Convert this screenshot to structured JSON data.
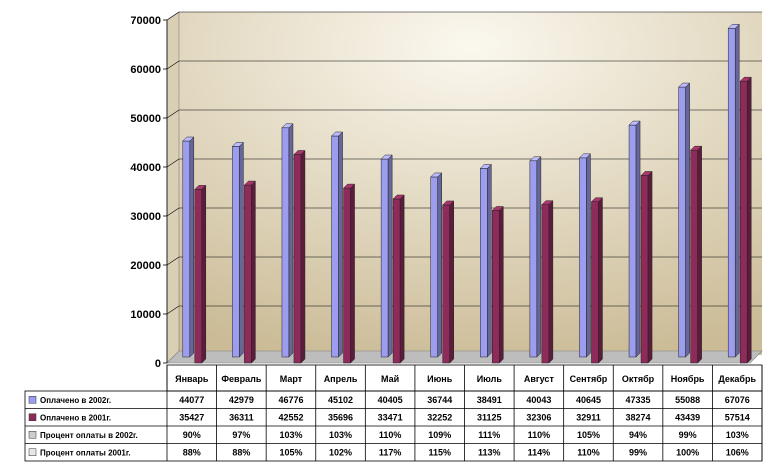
{
  "chart_data": {
    "type": "bar",
    "categories": [
      "Январь",
      "Февраль",
      "Март",
      "Апрель",
      "Май",
      "Июнь",
      "Июль",
      "Август",
      "Сентябр",
      "Октябр",
      "Ноябрь",
      "Декабрь"
    ],
    "ylim": [
      0,
      70000
    ],
    "yticks": [
      0,
      10000,
      20000,
      30000,
      40000,
      50000,
      60000,
      70000
    ],
    "grid": true,
    "series": [
      {
        "name": "Оплачено в 2002г.",
        "values": [
          44077,
          42979,
          46776,
          45102,
          40405,
          36744,
          38491,
          40043,
          40645,
          47335,
          55088,
          67076
        ]
      },
      {
        "name": "Оплачено в 2001г.",
        "values": [
          35427,
          36311,
          42552,
          35696,
          33471,
          32252,
          31125,
          32306,
          32911,
          38274,
          43439,
          57514
        ]
      }
    ],
    "table_rows": [
      {
        "label": "Оплачено в 2002г.",
        "values": [
          "44077",
          "42979",
          "46776",
          "45102",
          "40405",
          "36744",
          "38491",
          "40043",
          "40645",
          "47335",
          "55088",
          "67076"
        ]
      },
      {
        "label": "Оплачено в 2001г.",
        "values": [
          "35427",
          "36311",
          "42552",
          "35696",
          "33471",
          "32252",
          "31125",
          "32306",
          "32911",
          "38274",
          "43439",
          "57514"
        ]
      },
      {
        "label": "Процент оплаты в 2002г.",
        "values": [
          "90%",
          "97%",
          "103%",
          "103%",
          "110%",
          "109%",
          "111%",
          "110%",
          "105%",
          "94%",
          "99%",
          "103%"
        ]
      },
      {
        "label": "Процент оплаты  2001г.",
        "values": [
          "88%",
          "88%",
          "105%",
          "102%",
          "117%",
          "115%",
          "113%",
          "114%",
          "110%",
          "99%",
          "100%",
          "106%"
        ]
      }
    ]
  },
  "colors": {
    "series_2002": "#9d9df0",
    "series_2001": "#8e2b5a",
    "pct_2002": "#cccccc",
    "pct_2001": "#e6e6e6",
    "wall_light": "#fbf8ef",
    "wall_dark": "#cbbb96"
  }
}
